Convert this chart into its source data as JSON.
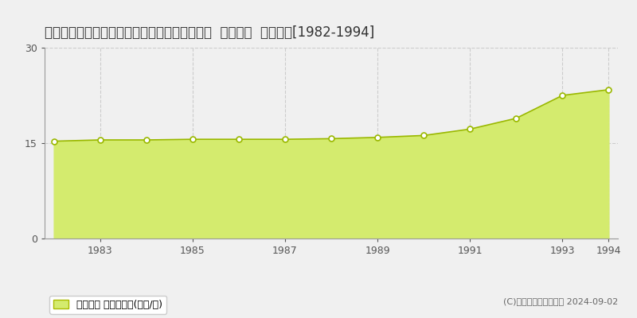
{
  "title": "徳島県板野郡松茂町住吉字住吉開拓９９番５外  地価公示  地価推移[1982-1994]",
  "years": [
    1982,
    1983,
    1984,
    1985,
    1986,
    1987,
    1988,
    1989,
    1990,
    1991,
    1992,
    1993,
    1994
  ],
  "values": [
    15.3,
    15.5,
    15.5,
    15.6,
    15.6,
    15.6,
    15.7,
    15.9,
    16.2,
    17.2,
    18.9,
    22.5,
    23.4
  ],
  "ylim": [
    0,
    30
  ],
  "yticks": [
    0,
    15,
    30
  ],
  "fill_color": "#d4eb6e",
  "line_color": "#9ab800",
  "marker_facecolor": "white",
  "marker_edgecolor": "#9ab800",
  "grid_color": "#cccccc",
  "background_color": "#f0f0f0",
  "plot_bg_color": "#f0f0f0",
  "legend_label": "地価公示 平均坪単価(万円/坪)",
  "copyright_text": "(C)土地価格ドットコム 2024-09-02",
  "title_fontsize": 12,
  "axis_fontsize": 9,
  "legend_fontsize": 9,
  "xtick_positions": [
    1983,
    1985,
    1987,
    1989,
    1991,
    1993,
    1994
  ],
  "xlim": [
    1981.8,
    1994.2
  ]
}
